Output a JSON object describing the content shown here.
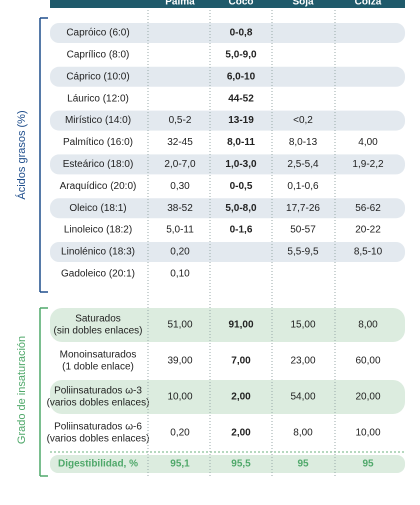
{
  "header": {
    "columns": [
      "Palma",
      "Coco",
      "Soja",
      "Colza"
    ]
  },
  "fatty_acids": {
    "title": "Ácidos grasos (%)",
    "rows": [
      [
        "Caprόico (6:0)",
        null,
        "0-0,8",
        null,
        null
      ],
      [
        "Caprílico (8:0)",
        null,
        "5,0-9,0",
        null,
        null
      ],
      [
        "Cáprico (10:0)",
        null,
        "6,0-10",
        null,
        null
      ],
      [
        "Láurico (12:0)",
        null,
        "44-52",
        null,
        null
      ],
      [
        "Mirístico (14:0)",
        "0,5-2",
        "13-19",
        "<0,2",
        null
      ],
      [
        "Palmítico (16:0)",
        "32-45",
        "8,0-11",
        "8,0-13",
        "4,00"
      ],
      [
        "Esteárico (18:0)",
        "2,0-7,0",
        "1,0-3,0",
        "2,5-5,4",
        "1,9-2,2"
      ],
      [
        "Araquídico (20:0)",
        "0,30",
        "0-0,5",
        "0,1-0,6",
        null
      ],
      [
        "Oleico (18:1)",
        "38-52",
        "5,0-8,0",
        "17,7-26",
        "56-62"
      ],
      [
        "Linoleico (18:2)",
        "5,0-11",
        "0-1,6",
        "50-57",
        "20-22"
      ],
      [
        "Linolénico (18:3)",
        "0,20",
        null,
        "5,5-9,5",
        "8,5-10"
      ],
      [
        "Gadoleico (20:1)",
        "0,10",
        null,
        null,
        null
      ]
    ]
  },
  "unsaturation": {
    "title": "Grado de insaturación",
    "rows": [
      [
        [
          "Saturados",
          "(sin dobles enlaces)"
        ],
        "51,00",
        "91,00",
        "15,00",
        "8,00"
      ],
      [
        [
          "Monoinsaturados",
          "(1 doble enlace)"
        ],
        "39,00",
        "7,00",
        "23,00",
        "60,00"
      ],
      [
        [
          "Poliinsaturados ω-3",
          "(varios dobles enlaces)"
        ],
        "10,00",
        "2,00",
        "54,00",
        "20,00"
      ],
      [
        [
          "Poliinsaturados ω-6",
          "(varios dobles enlaces)"
        ],
        "0,20",
        "2,00",
        "8,00",
        "10,00"
      ]
    ]
  },
  "digestibility": [
    "Digestibilidad, %",
    "95,1",
    "95,5",
    "95",
    "95"
  ]
}
